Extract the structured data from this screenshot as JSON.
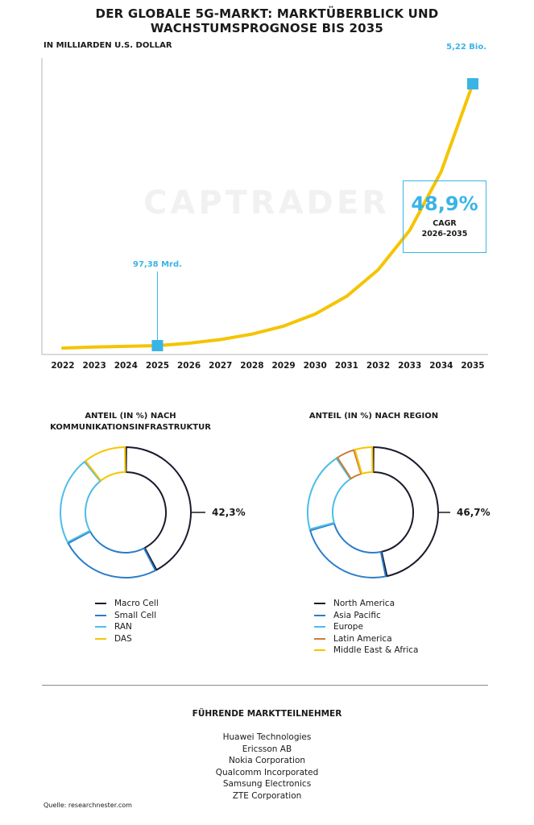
{
  "title_line1": "DER GLOBALE 5G-MARKT: MARKTÜBERBLICK UND",
  "title_line2": "WACHSTUMSPROGNOSE BIS 2035",
  "unit_label": "IN MILLIARDEN U.S. DOLLAR",
  "watermark": "CAPTRADER",
  "cagr": {
    "value": "48,9%",
    "label_line1": "CAGR",
    "label_line2": "2026-2035"
  },
  "chart_data": [
    {
      "type": "line",
      "x": [
        "2022",
        "2023",
        "2024",
        "2025",
        "2026",
        "2027",
        "2028",
        "2029",
        "2030",
        "2031",
        "2032",
        "2033",
        "2034",
        "2035"
      ],
      "series": [
        {
          "values": [
            50,
            70,
            83,
            97.38,
            145,
            216,
            322,
            479,
            713,
            1062,
            1580,
            2353,
            3504,
            5220
          ]
        }
      ],
      "annotations": [
        {
          "x": "2025",
          "value": 97.38,
          "label": "97,38 Mrd."
        },
        {
          "x": "2035",
          "value": 5220,
          "label": "5,22 Bio."
        }
      ],
      "line_color": "#f5c400",
      "marker_color": "#3ab4e6",
      "xlabel": "",
      "ylabel": ""
    },
    {
      "type": "pie",
      "title_line1": "ANTEIL (IN %) NACH",
      "title_line2": "KOMMUNIKATIONSINFRASTRUKTUR",
      "categories": [
        "Macro Cell",
        "Small Cell",
        "RAN",
        "DAS"
      ],
      "values": [
        42.3,
        25,
        22,
        10.7
      ],
      "colors": [
        "#1a1a2e",
        "#2a7dc9",
        "#4cbde8",
        "#f5c400"
      ],
      "highlight_label": "42,3%",
      "legend_position": "bottom"
    },
    {
      "type": "pie",
      "title_line1": "ANTEIL (IN %) NACH REGION",
      "title_line2": "",
      "categories": [
        "North America",
        "Asia Pacific",
        "Europe",
        "Latin America",
        "Middle East & Africa"
      ],
      "values": [
        46.7,
        24,
        20,
        4.7,
        4.6
      ],
      "colors": [
        "#1a1a2e",
        "#2a7dc9",
        "#4cbde8",
        "#c87d3a",
        "#f5c400"
      ],
      "highlight_label": "46,7%",
      "legend_position": "bottom"
    }
  ],
  "players_title": "FÜHRENDE MARKTTEILNEHMER",
  "players": [
    "Huawei Technologies",
    "Ericsson AB",
    "Nokia Corporation",
    "Qualcomm Incorporated",
    "Samsung Electronics",
    "ZTE Corporation"
  ],
  "source": "Quelle: researchnester.com"
}
